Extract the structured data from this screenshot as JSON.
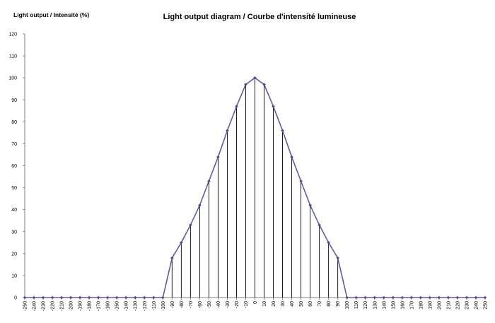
{
  "chart_data": {
    "type": "line",
    "title": "Light output diagram / Courbe d'intensité lumineuse",
    "ylabel": "Light output / Intensité (%)",
    "xlabel": "",
    "ylim": [
      0,
      120
    ],
    "yticks": [
      0,
      10,
      20,
      30,
      40,
      50,
      60,
      70,
      80,
      90,
      100,
      110,
      120
    ],
    "grid": false,
    "legend": "none",
    "drop_lines": true,
    "series_color": "#5a5f9e",
    "marker_color": "#4a4f90",
    "x": [
      -250,
      -240,
      -230,
      -220,
      -210,
      -200,
      -190,
      -180,
      -170,
      -160,
      -150,
      -140,
      -130,
      -120,
      -110,
      -100,
      -90,
      -80,
      -70,
      -60,
      -50,
      -40,
      -30,
      -20,
      -10,
      0,
      10,
      20,
      30,
      40,
      50,
      60,
      70,
      80,
      90,
      100,
      110,
      120,
      130,
      140,
      150,
      160,
      170,
      180,
      190,
      200,
      210,
      220,
      230,
      240,
      250
    ],
    "xtick_labels": [
      "-250",
      "-240",
      "-230",
      "-220",
      "-210",
      "-200",
      "-190",
      "-180",
      "-170",
      "-160",
      "-150",
      "-140",
      "-130",
      "-120",
      "-110",
      "-100",
      "-90",
      "-80",
      "-70",
      "-60",
      "-50",
      "-40",
      "-30",
      "-20",
      "-10",
      "0",
      "10",
      "20",
      "30",
      "40",
      "50",
      "60",
      "70",
      "80",
      "90",
      "100",
      "110",
      "120",
      "130",
      "140",
      "150",
      "160",
      "170",
      "180",
      "190",
      "200",
      "210",
      "220",
      "230",
      "240",
      "250"
    ],
    "series": [
      {
        "values": [
          0,
          0,
          0,
          0,
          0,
          0,
          0,
          0,
          0,
          0,
          0,
          0,
          0,
          0,
          0,
          0,
          18,
          25,
          33,
          42,
          53,
          64,
          76,
          87,
          97,
          100,
          97,
          87,
          76,
          64,
          53,
          42,
          33,
          25,
          18,
          0,
          0,
          0,
          0,
          0,
          0,
          0,
          0,
          0,
          0,
          0,
          0,
          0,
          0,
          0,
          0
        ]
      }
    ]
  }
}
